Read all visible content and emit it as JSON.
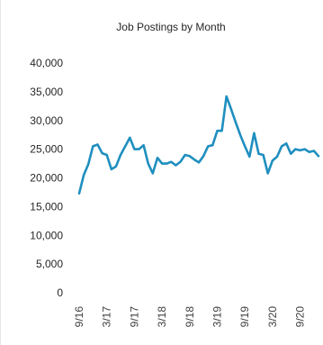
{
  "chart_data": {
    "type": "line",
    "title": "Job Postings by Month",
    "xlabel": "",
    "ylabel": "",
    "ylim": [
      0,
      40000
    ],
    "y_ticks": [
      "40,000",
      "35,000",
      "30,000",
      "25,000",
      "20,000",
      "15,000",
      "10,000",
      "5,000",
      "0"
    ],
    "x_tick_labels": [
      "9/16",
      "3/17",
      "9/17",
      "3/18",
      "9/18",
      "3/19",
      "9/19",
      "3/20",
      "9/20"
    ],
    "grid": false,
    "legend": "none",
    "line_color": "#1f8fbf",
    "x": [
      "2016-09",
      "2016-10",
      "2016-11",
      "2016-12",
      "2017-01",
      "2017-02",
      "2017-03",
      "2017-04",
      "2017-05",
      "2017-06",
      "2017-07",
      "2017-08",
      "2017-09",
      "2017-10",
      "2017-11",
      "2017-12",
      "2018-01",
      "2018-02",
      "2018-03",
      "2018-04",
      "2018-05",
      "2018-06",
      "2018-07",
      "2018-08",
      "2018-09",
      "2018-10",
      "2018-11",
      "2018-12",
      "2019-01",
      "2019-02",
      "2019-03",
      "2019-04",
      "2019-05",
      "2019-06",
      "2019-07",
      "2019-08",
      "2019-09",
      "2019-10",
      "2019-11",
      "2019-12",
      "2020-01",
      "2020-02",
      "2020-03",
      "2020-04",
      "2020-05",
      "2020-06",
      "2020-07",
      "2020-08",
      "2020-09",
      "2020-10",
      "2020-11",
      "2020-12",
      "2021-01"
    ],
    "series": [
      {
        "values": [
          17300,
          20500,
          22400,
          25500,
          25800,
          24300,
          24000,
          21500,
          22000,
          24000,
          25500,
          27000,
          25000,
          25000,
          25700,
          22500,
          20800,
          23500,
          22500,
          22500,
          22800,
          22200,
          22800,
          24000,
          23800,
          23200,
          22700,
          23800,
          25500,
          25700,
          28200,
          28200,
          34200,
          32000,
          29700,
          27500,
          25500,
          23700,
          27800,
          24200,
          24000,
          20800,
          23000,
          23700,
          25500,
          26000,
          24200,
          25000,
          24800,
          25000,
          24500,
          24700,
          23800
        ]
      }
    ]
  }
}
